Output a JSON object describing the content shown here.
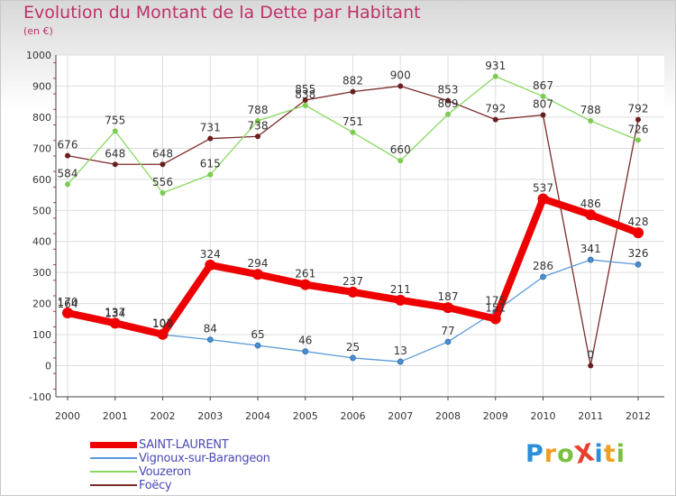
{
  "chart_data": {
    "type": "line",
    "title": "Evolution du Montant de la Dette par Habitant",
    "subtitle": "(en €)",
    "xlabel": "",
    "ylabel": "",
    "ylim": [
      -100,
      1000
    ],
    "y_ticks": [
      "-100",
      "0",
      "100",
      "200",
      "300",
      "400",
      "500",
      "600",
      "700",
      "800",
      "900",
      "1000"
    ],
    "categories": [
      "2000",
      "2001",
      "2002",
      "2003",
      "2004",
      "2005",
      "2006",
      "2007",
      "2008",
      "2009",
      "2010",
      "2011",
      "2012"
    ],
    "grid": true,
    "legend_position": "bottom-left",
    "series": [
      {
        "name": "SAINT-LAURENT",
        "color": "#ee0000",
        "values": [
          170,
          137,
          101,
          324,
          294,
          261,
          237,
          211,
          187,
          151,
          537,
          486,
          428
        ],
        "labels": [
          "170",
          "137",
          "101",
          "324",
          "294",
          "261",
          "237",
          "211",
          "187",
          "151",
          "537",
          "486",
          "428"
        ]
      },
      {
        "name": "Vignoux-sur-Barangeon",
        "color": "#4a90cf",
        "values": [
          164,
          134,
          100,
          84,
          65,
          46,
          25,
          13,
          77,
          175,
          286,
          341,
          326
        ],
        "labels": [
          "164",
          "134",
          "100",
          "84",
          "65",
          "46",
          "25",
          "13",
          "77",
          "175",
          "286",
          "341",
          "326"
        ]
      },
      {
        "name": "Vouzeron",
        "color": "#88d860",
        "values": [
          584,
          755,
          556,
          615,
          788,
          838,
          751,
          660,
          809,
          931,
          867,
          788,
          726
        ],
        "labels": [
          "584",
          "755",
          "556",
          "615",
          "788",
          "838",
          "751",
          "660",
          "809",
          "931",
          "867",
          "788",
          "726"
        ]
      },
      {
        "name": "Foëcy",
        "color": "#7a2a2a",
        "values": [
          676,
          648,
          648,
          731,
          738,
          855,
          882,
          900,
          853,
          792,
          807,
          0,
          792
        ],
        "labels": [
          "676",
          "648",
          "648",
          "731",
          "738",
          "855",
          "882",
          "900",
          "853",
          "792",
          "807",
          "0",
          "792"
        ]
      }
    ]
  },
  "logo": {
    "text": "ProXiti",
    "letters": [
      "P",
      "r",
      "o",
      "X",
      "i",
      "t",
      "i"
    ],
    "colors": [
      "#2a8fd8",
      "#f0a020",
      "#7ac040",
      "#e84030",
      "#2a8fd8",
      "#f0a020",
      "#7ac040"
    ]
  }
}
